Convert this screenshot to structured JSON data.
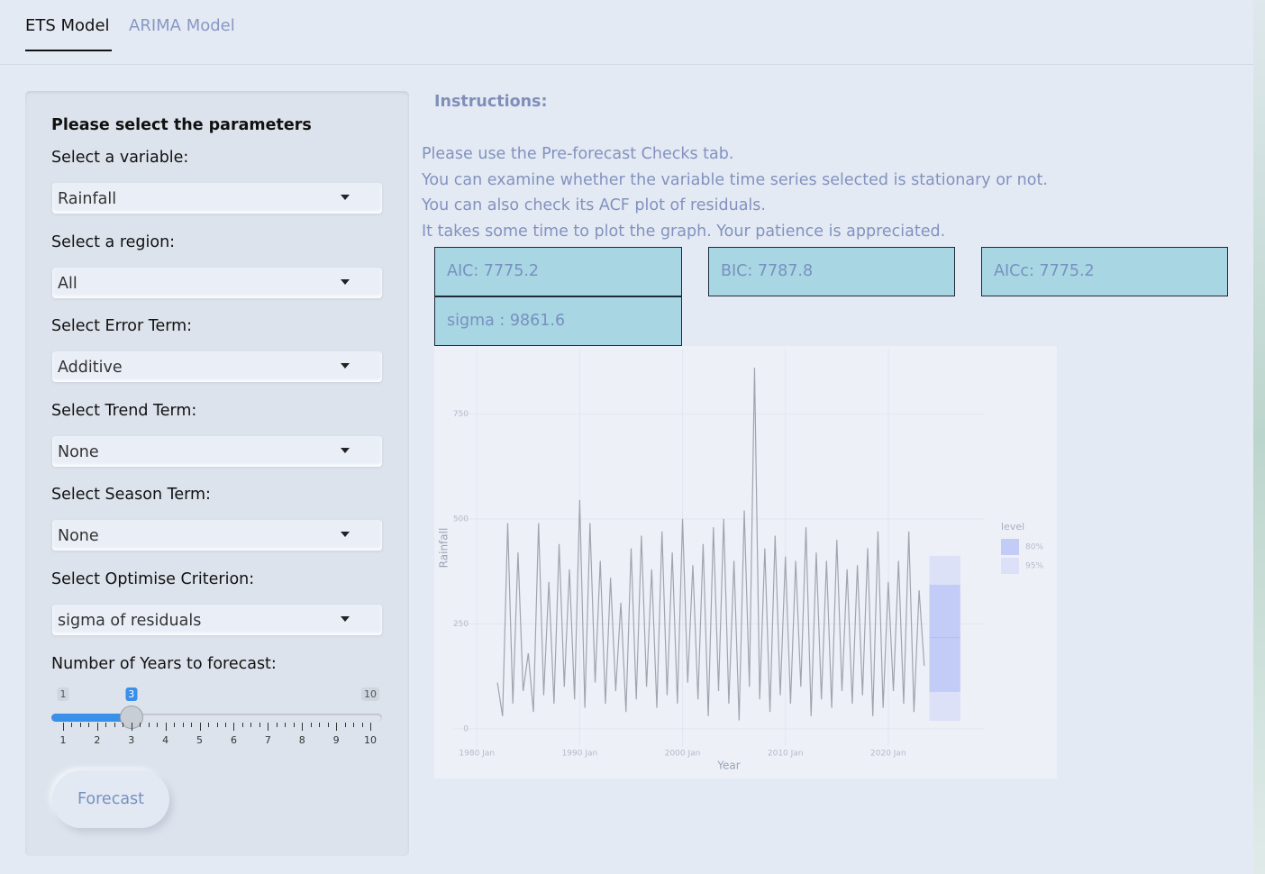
{
  "tabs": [
    "ETS Model",
    "ARIMA Model"
  ],
  "sidebar": {
    "title": "Please select the parameters",
    "fields": [
      {
        "label": "Select a variable:",
        "value": "Rainfall"
      },
      {
        "label": "Select a region:",
        "value": "All"
      },
      {
        "label": "Select Error Term:",
        "value": "Additive"
      },
      {
        "label": "Select Trend Term:",
        "value": "None"
      },
      {
        "label": "Select Season Term:",
        "value": "None"
      },
      {
        "label": "Select Optimise Criterion:",
        "value": "sigma of residuals"
      }
    ],
    "slider": {
      "label": "Number of Years to forecast:",
      "min": 1,
      "max": 10,
      "value": 3,
      "ticks": [
        1,
        2,
        3,
        4,
        5,
        6,
        7,
        8,
        9,
        10
      ]
    },
    "button": "Forecast"
  },
  "instructions": {
    "title": "Instructions:",
    "lines": [
      "Please use the Pre-forecast Checks tab.",
      "You can examine whether the variable time series selected is stationary or not.",
      "You can also check its ACF plot of residuals.",
      "It takes some time to plot the graph. Your patience is appreciated."
    ]
  },
  "stats": [
    "AIC: 7775.2",
    "BIC: 7787.8",
    "AICc: 7775.2",
    "sigma : 9861.6"
  ],
  "chart_data": {
    "type": "line",
    "x_label": "Year",
    "y_label": "Rainfall",
    "color": "#a0a4ad",
    "x": [
      1982.0,
      1982.5,
      1983.0,
      1983.5,
      1984.0,
      1984.5,
      1985.0,
      1985.5,
      1986.0,
      1986.5,
      1987.0,
      1987.5,
      1988.0,
      1988.5,
      1989.0,
      1989.5,
      1990.0,
      1990.5,
      1991.0,
      1991.5,
      1992.0,
      1992.5,
      1993.0,
      1993.5,
      1994.0,
      1994.5,
      1995.0,
      1995.5,
      1996.0,
      1996.5,
      1997.0,
      1997.5,
      1998.0,
      1998.5,
      1999.0,
      1999.5,
      2000.0,
      2000.5,
      2001.0,
      2001.5,
      2002.0,
      2002.5,
      2003.0,
      2003.5,
      2004.0,
      2004.5,
      2005.0,
      2005.5,
      2006.0,
      2006.5,
      2007.0,
      2007.5,
      2008.0,
      2008.5,
      2009.0,
      2009.5,
      2010.0,
      2010.5,
      2011.0,
      2011.5,
      2012.0,
      2012.5,
      2013.0,
      2013.5,
      2014.0,
      2014.5,
      2015.0,
      2015.5,
      2016.0,
      2016.5,
      2017.0,
      2017.5,
      2018.0,
      2018.5,
      2019.0,
      2019.5,
      2020.0,
      2020.5,
      2021.0,
      2021.5,
      2022.0,
      2022.5,
      2023.0,
      2023.5
    ],
    "values": [
      110,
      30,
      490,
      60,
      420,
      90,
      180,
      40,
      490,
      80,
      350,
      60,
      440,
      100,
      380,
      70,
      545,
      50,
      490,
      110,
      400,
      60,
      360,
      90,
      300,
      40,
      430,
      70,
      460,
      100,
      380,
      50,
      470,
      80,
      420,
      60,
      500,
      110,
      390,
      70,
      440,
      30,
      480,
      90,
      500,
      60,
      400,
      20,
      520,
      100,
      860,
      70,
      430,
      40,
      460,
      80,
      410,
      60,
      400,
      100,
      480,
      30,
      420,
      70,
      400,
      50,
      450,
      90,
      380,
      60,
      390,
      80,
      430,
      30,
      470,
      50,
      350,
      90,
      400,
      60,
      470,
      40,
      330,
      150
    ],
    "forecast": {
      "x": [
        2024.0,
        2027.0
      ],
      "mean": 217,
      "levels": [
        {
          "name": "80%",
          "lo": 88,
          "hi": 343,
          "color": "#c3cbf7"
        },
        {
          "name": "95%",
          "lo": 19,
          "hi": 412,
          "color": "#dce1f7"
        }
      ]
    },
    "legend_title": "level",
    "xlim": [
      1977.7,
      2029.3
    ],
    "xticks": [
      {
        "value": 1980,
        "label": "1980 Jan"
      },
      {
        "value": 1990,
        "label": "1990 Jan"
      },
      {
        "value": 2000,
        "label": "2000 Jan"
      },
      {
        "value": 2010,
        "label": "2010 Jan"
      },
      {
        "value": 2020,
        "label": "2020 Jan"
      }
    ],
    "ylim": [
      -41,
      903
    ],
    "yticks": [
      0,
      250,
      500,
      750
    ],
    "grid": true
  }
}
